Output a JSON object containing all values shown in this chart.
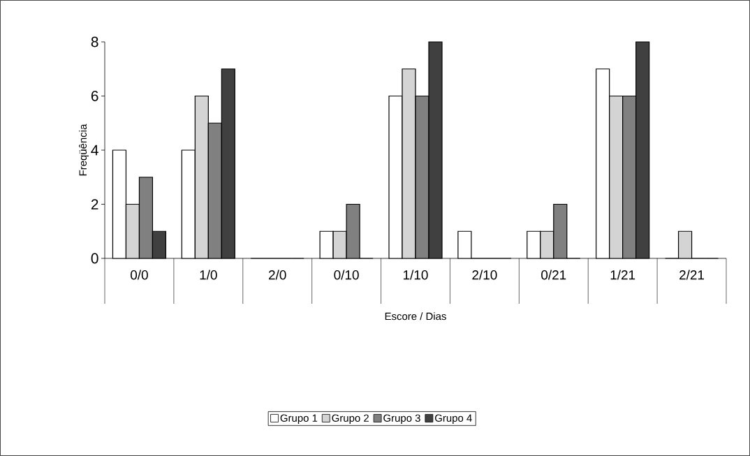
{
  "chart_data": {
    "type": "bar",
    "xlabel": "Escore / Dias",
    "ylabel": "Freqüência",
    "categories": [
      "0/0",
      "1/0",
      "2/0",
      "0/10",
      "1/10",
      "2/10",
      "0/21",
      "1/21",
      "2/21"
    ],
    "series": [
      {
        "name": "Grupo 1",
        "color": "#ffffff",
        "values": [
          4,
          4,
          0,
          1,
          6,
          1,
          1,
          7,
          0
        ]
      },
      {
        "name": "Grupo 2",
        "color": "#d4d4d4",
        "values": [
          2,
          6,
          0,
          1,
          7,
          0,
          1,
          6,
          1
        ]
      },
      {
        "name": "Grupo 3",
        "color": "#808080",
        "values": [
          3,
          5,
          0,
          2,
          6,
          0,
          2,
          6,
          0
        ]
      },
      {
        "name": "Grupo 4",
        "color": "#404040",
        "values": [
          1,
          7,
          0,
          0,
          8,
          0,
          0,
          8,
          0
        ]
      }
    ],
    "ylim": [
      0,
      8
    ],
    "yticks": [
      0,
      2,
      4,
      6,
      8
    ],
    "grid": false,
    "legend": "bottom"
  }
}
